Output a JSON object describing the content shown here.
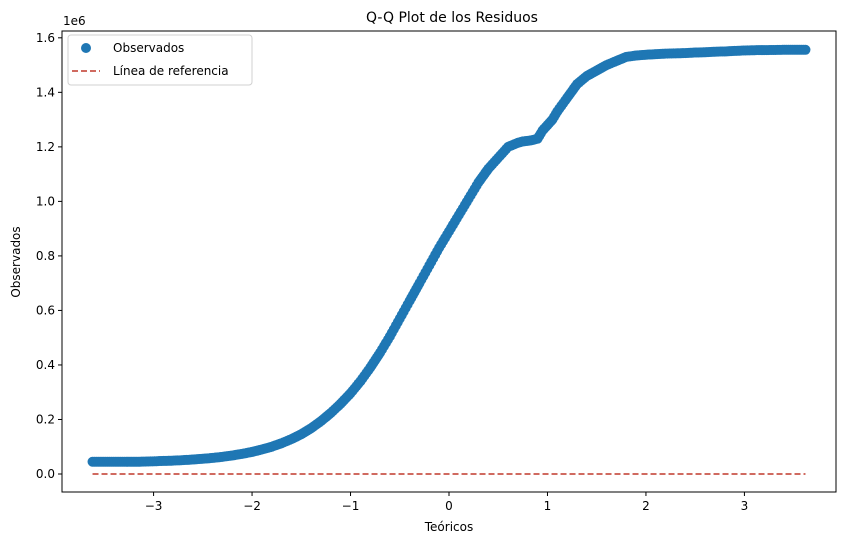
{
  "chart_data": {
    "type": "scatter",
    "title": "Q-Q Plot de los Residuos",
    "xlabel": "Teóricos",
    "ylabel": "Observados",
    "y_offset_label": "1e6",
    "xlim": [
      -3.93,
      3.93
    ],
    "ylim": [
      -0.066,
      1.625
    ],
    "x_ticks": [
      -3,
      -2,
      -1,
      0,
      1,
      2,
      3
    ],
    "x_tick_labels": [
      "−3",
      "−2",
      "−1",
      "0",
      "1",
      "2",
      "3"
    ],
    "y_ticks": [
      0.0,
      0.2,
      0.4,
      0.6,
      0.8,
      1.0,
      1.2,
      1.4,
      1.6
    ],
    "y_tick_labels": [
      "0.0",
      "0.2",
      "0.4",
      "0.6",
      "0.8",
      "1.0",
      "1.2",
      "1.4",
      "1.6"
    ],
    "grid": false,
    "legend_position": "top-left",
    "series": [
      {
        "name": "Observados",
        "kind": "scatter",
        "color": "#1f77b4",
        "x": [
          -3.62,
          -3.39,
          -3.24,
          -3.14,
          -3.05,
          -2.97,
          -2.9,
          -2.8,
          -2.7,
          -2.6,
          -2.5,
          -2.4,
          -2.3,
          -2.2,
          -2.1,
          -2.0,
          -1.9,
          -1.8,
          -1.7,
          -1.6,
          -1.5,
          -1.4,
          -1.3,
          -1.2,
          -1.1,
          -1.0,
          -0.9,
          -0.8,
          -0.7,
          -0.6,
          -0.5,
          -0.4,
          -0.3,
          -0.2,
          -0.1,
          0.0,
          0.1,
          0.2,
          0.3,
          0.4,
          0.5,
          0.6,
          0.7,
          0.75,
          0.8,
          0.85,
          0.9,
          0.95,
          1.0,
          1.05,
          1.1,
          1.2,
          1.3,
          1.4,
          1.5,
          1.6,
          1.7,
          1.8,
          1.9,
          2.0,
          2.1,
          2.2,
          2.3,
          2.4,
          2.5,
          2.6,
          2.7,
          2.8,
          2.9,
          2.97,
          3.05,
          3.14,
          3.24,
          3.39,
          3.62
        ],
        "y": [
          0.045,
          0.045,
          0.045,
          0.045,
          0.046,
          0.047,
          0.048,
          0.049,
          0.051,
          0.053,
          0.056,
          0.059,
          0.063,
          0.068,
          0.074,
          0.081,
          0.09,
          0.1,
          0.113,
          0.128,
          0.146,
          0.168,
          0.194,
          0.224,
          0.258,
          0.296,
          0.34,
          0.39,
          0.445,
          0.505,
          0.57,
          0.635,
          0.7,
          0.765,
          0.83,
          0.89,
          0.95,
          1.01,
          1.07,
          1.12,
          1.16,
          1.2,
          1.215,
          1.22,
          1.222,
          1.225,
          1.23,
          1.26,
          1.28,
          1.3,
          1.33,
          1.38,
          1.43,
          1.46,
          1.48,
          1.5,
          1.515,
          1.53,
          1.535,
          1.538,
          1.54,
          1.542,
          1.543,
          1.544,
          1.546,
          1.547,
          1.549,
          1.55,
          1.552,
          1.553,
          1.554,
          1.555,
          1.555,
          1.556,
          1.556
        ]
      },
      {
        "name": "Línea de referencia",
        "kind": "line",
        "color": "#c0392b",
        "dash": "dashed",
        "x": [
          -3.62,
          3.62
        ],
        "y": [
          0.0,
          0.0
        ]
      }
    ]
  }
}
